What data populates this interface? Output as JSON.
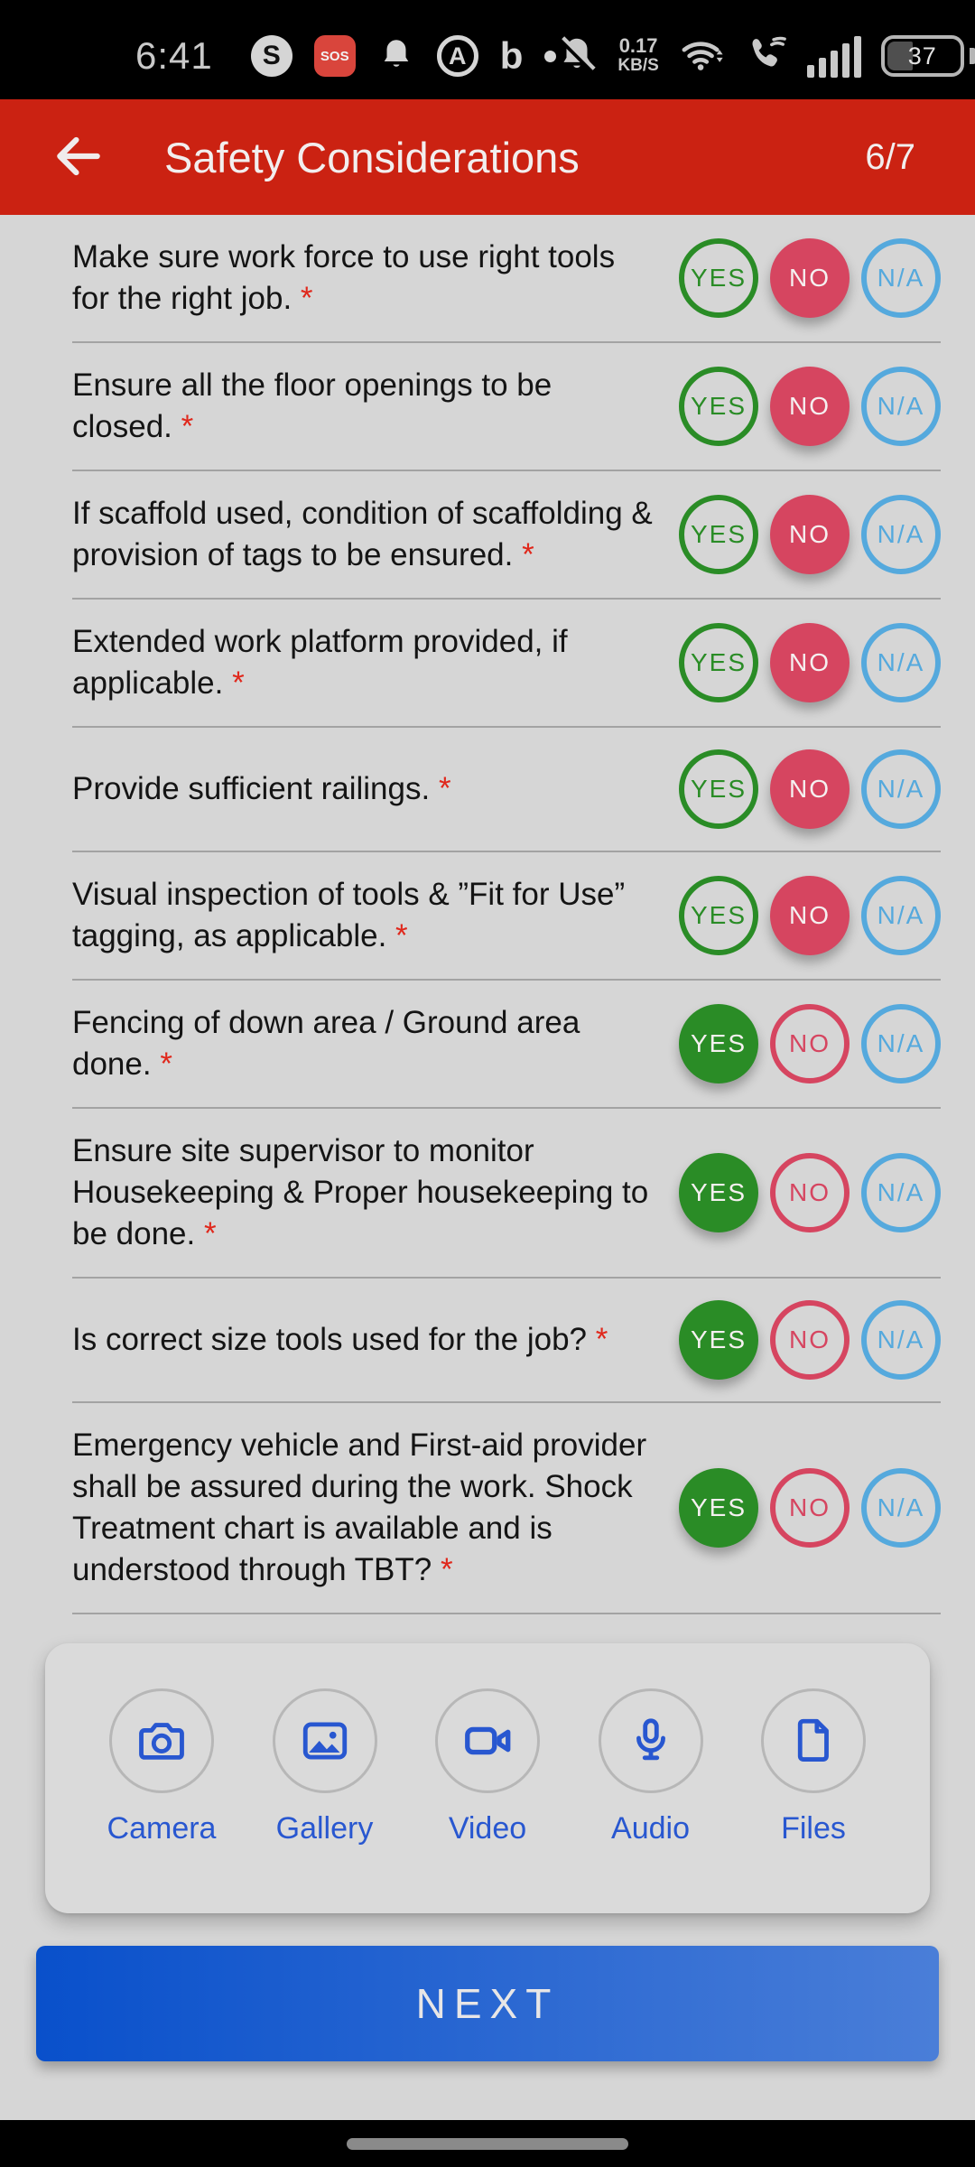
{
  "status_bar": {
    "time": "6:41",
    "left_icons": [
      "s-app-icon",
      "sos-icon",
      "notification-bell-icon",
      "a-app-icon",
      "bing-icon",
      "more-notifications-dot"
    ],
    "sos_label": "SOS",
    "s_label": "S",
    "a_label": "A",
    "bing_label": "b",
    "net_speed_value": "0.17",
    "net_speed_unit": "KB/S",
    "signal_bars": 5,
    "battery_level": "37"
  },
  "header": {
    "title": "Safety Considerations",
    "page_indicator": "6/7"
  },
  "answer_options": [
    "YES",
    "NO",
    "N/A"
  ],
  "questions": [
    {
      "text": "Make sure work force to use right tools for the right job.",
      "required": true,
      "answer": "NO"
    },
    {
      "text": "Ensure all the floor openings to be closed.",
      "required": true,
      "answer": "NO"
    },
    {
      "text": "If scaffold used, condition of scaffolding & provision of tags to be ensured.",
      "required": true,
      "answer": "NO"
    },
    {
      "text": "Extended work platform provided, if applicable.",
      "required": true,
      "answer": "NO"
    },
    {
      "text": "Provide sufficient railings.",
      "required": true,
      "answer": "NO"
    },
    {
      "text": "Visual inspection of tools & ”Fit for Use” tagging, as applicable.",
      "required": true,
      "answer": "NO"
    },
    {
      "text": "Fencing of down area / Ground area done.",
      "required": true,
      "answer": "YES"
    },
    {
      "text": "Ensure site supervisor to monitor Housekeeping & Proper housekeeping to be done.",
      "required": true,
      "answer": "YES"
    },
    {
      "text": "Is correct size tools used for the job?",
      "required": true,
      "answer": "YES"
    },
    {
      "text": "Emergency vehicle and First-aid provider shall be assured during the work. Shock Treatment chart is available and is understood through TBT?",
      "required": true,
      "answer": "YES"
    }
  ],
  "attachments": [
    {
      "label": "Camera",
      "icon": "camera-icon"
    },
    {
      "label": "Gallery",
      "icon": "gallery-icon"
    },
    {
      "label": "Video",
      "icon": "video-icon"
    },
    {
      "label": "Audio",
      "icon": "audio-icon"
    },
    {
      "label": "Files",
      "icon": "files-icon"
    }
  ],
  "next_button": {
    "label": "NEXT"
  },
  "colors": {
    "header_bg": "#cb2212",
    "yes": "#2a8c26",
    "no": "#d64560",
    "na": "#55a9dd",
    "accent_blue": "#2857d0",
    "required_asterisk": "#e0281c",
    "next_gradient_from": "#0950cb",
    "next_gradient_to": "#4a7ed8"
  }
}
